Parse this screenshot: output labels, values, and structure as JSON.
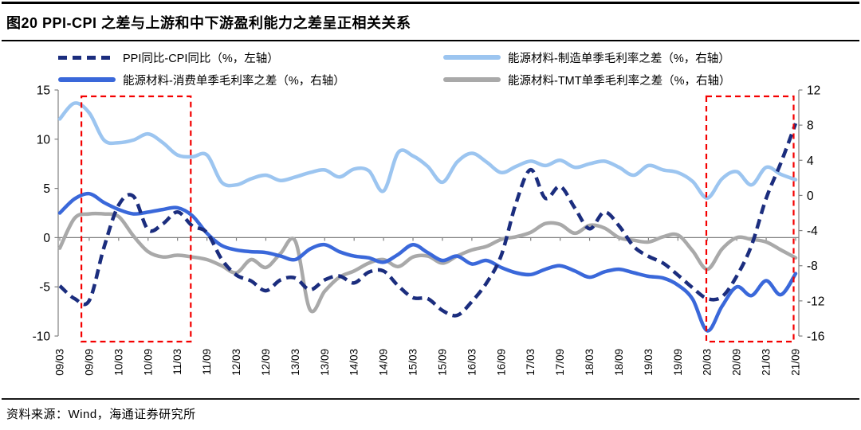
{
  "header": {
    "title": "图20 PPI-CPI 之差与上游和中下游盈利能力之差呈正相关关系"
  },
  "footer": {
    "source": "资料来源：Wind，海通证券研究所"
  },
  "legend": {
    "items": [
      {
        "label": "PPI同比-CPI同比（%，左轴）",
        "color": "#1b2d7e",
        "style": "dashed"
      },
      {
        "label": "能源材料-制造单季毛利率之差（%，右轴）",
        "color": "#9cc5f0",
        "style": "solid"
      },
      {
        "label": "能源材料-消费单季毛利率之差（%，右轴）",
        "color": "#3a68da",
        "style": "solid"
      },
      {
        "label": "能源材料-TMT单季毛利率之差（%，右轴）",
        "color": "#a9a9a9",
        "style": "solid"
      }
    ]
  },
  "chart_data": {
    "type": "line",
    "title": "图20 PPI-CPI 之差与上游和中下游盈利能力之差呈正相关关系",
    "legend_position": "top",
    "grid": "zero-line-only",
    "x_quarters": [
      "09/03",
      "09/06",
      "09/09",
      "09/12",
      "10/03",
      "10/06",
      "10/09",
      "10/12",
      "11/03",
      "11/06",
      "11/09",
      "11/12",
      "12/03",
      "12/06",
      "12/09",
      "12/12",
      "13/03",
      "13/06",
      "13/09",
      "13/12",
      "14/03",
      "14/06",
      "14/09",
      "14/12",
      "15/03",
      "15/06",
      "15/09",
      "15/12",
      "16/03",
      "16/06",
      "16/09",
      "16/12",
      "17/03",
      "17/06",
      "17/09",
      "17/12",
      "18/03",
      "18/06",
      "18/09",
      "18/12",
      "19/03",
      "19/06",
      "19/09",
      "19/12",
      "20/03",
      "20/06",
      "20/09",
      "20/12",
      "21/03",
      "21/06",
      "21/09"
    ],
    "x_tick_labels": [
      "09/03",
      "09/09",
      "10/03",
      "10/09",
      "11/03",
      "11/09",
      "12/03",
      "12/09",
      "13/03",
      "13/09",
      "14/03",
      "14/09",
      "15/03",
      "15/09",
      "16/03",
      "16/09",
      "17/03",
      "17/09",
      "18/03",
      "18/09",
      "19/03",
      "19/09",
      "20/03",
      "20/09",
      "21/03",
      "21/09"
    ],
    "left_axis": {
      "ticks": [
        15,
        10,
        5,
        0,
        -5,
        -10
      ],
      "min": -10,
      "max": 15
    },
    "right_axis": {
      "ticks": [
        12,
        8,
        4,
        0,
        -4,
        -8,
        -12,
        -16
      ],
      "min": -16,
      "max": 12
    },
    "series": [
      {
        "name": "PPI同比-CPI同比（%，左轴）",
        "axis": "left",
        "style": "dashed",
        "color": "#1b2d7e",
        "values": [
          -4.9,
          -6.2,
          -6.4,
          -1.0,
          3.3,
          4.2,
          0.8,
          1.4,
          2.6,
          1.2,
          0.5,
          -2.2,
          -3.8,
          -4.4,
          -5.4,
          -4.3,
          -4.1,
          -5.3,
          -4.3,
          -3.9,
          -4.6,
          -3.5,
          -3.4,
          -4.9,
          -6.1,
          -6.2,
          -7.4,
          -7.9,
          -6.5,
          -4.6,
          -1.8,
          3.5,
          6.9,
          4.0,
          5.2,
          3.0,
          0.9,
          2.6,
          1.2,
          -0.9,
          -1.9,
          -2.6,
          -3.8,
          -5.1,
          -6.2,
          -6.0,
          -3.9,
          -0.8,
          4.0,
          7.6,
          11.6
        ]
      },
      {
        "name": "能源材料-制造单季毛利率之差（%，右轴）",
        "axis": "right",
        "style": "solid",
        "color": "#9cc5f0",
        "values": [
          8.7,
          10.5,
          9.4,
          6.3,
          6.0,
          6.3,
          7.0,
          6.0,
          4.6,
          4.4,
          4.6,
          1.5,
          1.2,
          1.9,
          2.3,
          1.7,
          2.1,
          2.6,
          2.9,
          2.1,
          3.0,
          2.8,
          0.5,
          4.9,
          4.5,
          3.3,
          1.5,
          3.8,
          4.8,
          3.8,
          2.6,
          3.3,
          3.9,
          3.4,
          4.0,
          3.2,
          3.6,
          3.9,
          3.2,
          2.3,
          3.4,
          2.9,
          2.6,
          1.6,
          -0.3,
          1.9,
          2.7,
          1.2,
          3.2,
          2.4,
          1.8
        ]
      },
      {
        "name": "能源材料-消费单季毛利率之差（%，右轴）",
        "axis": "right",
        "style": "solid",
        "color": "#3a68da",
        "values": [
          -2.0,
          -0.4,
          0.2,
          -0.8,
          -1.6,
          -2.1,
          -1.9,
          -1.6,
          -1.4,
          -2.3,
          -4.3,
          -5.7,
          -6.2,
          -6.4,
          -6.5,
          -6.9,
          -7.3,
          -6.1,
          -5.6,
          -6.4,
          -6.9,
          -7.1,
          -7.6,
          -6.7,
          -5.6,
          -6.5,
          -7.4,
          -6.9,
          -7.8,
          -7.4,
          -8.2,
          -8.8,
          -9.0,
          -8.4,
          -8.0,
          -8.6,
          -9.3,
          -8.7,
          -8.4,
          -8.8,
          -9.2,
          -9.4,
          -10.2,
          -11.8,
          -15.4,
          -12.6,
          -10.4,
          -11.4,
          -9.7,
          -11.3,
          -8.9
        ]
      },
      {
        "name": "能源材料-TMT单季毛利率之差（%，右轴）",
        "axis": "right",
        "style": "solid",
        "color": "#a9a9a9",
        "values": [
          -6.0,
          -2.6,
          -2.1,
          -2.1,
          -2.4,
          -4.6,
          -6.4,
          -7.0,
          -6.8,
          -7.0,
          -7.3,
          -8.0,
          -8.8,
          -7.3,
          -8.2,
          -6.6,
          -5.2,
          -13.0,
          -10.9,
          -9.3,
          -8.6,
          -7.7,
          -7.3,
          -8.1,
          -7.0,
          -6.9,
          -7.7,
          -6.9,
          -6.2,
          -5.8,
          -5.0,
          -4.7,
          -4.2,
          -3.2,
          -3.3,
          -4.3,
          -3.4,
          -3.7,
          -4.8,
          -5.1,
          -5.3,
          -4.7,
          -4.5,
          -6.3,
          -8.4,
          -6.1,
          -4.8,
          -5.0,
          -5.3,
          -6.2,
          -7.1
        ]
      }
    ],
    "highlight_boxes": [
      {
        "start_month_index": 4.4,
        "end_month_index": 26.7,
        "color": "#f40000",
        "style": "dashed"
      },
      {
        "start_month_index": 131.8,
        "end_month_index": 149.6,
        "color": "#f40000",
        "style": "dashed"
      }
    ]
  }
}
